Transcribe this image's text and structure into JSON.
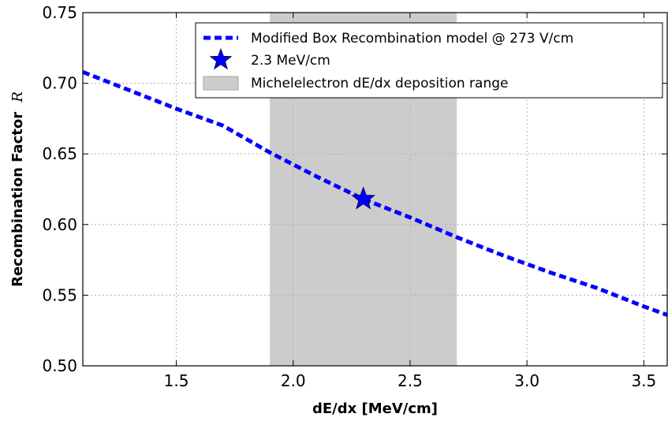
{
  "chart_data": {
    "type": "line",
    "xlabel": "dE/dx [MeV/cm]",
    "ylabel": "Recombination Factor",
    "ylabel_symbol": "R",
    "xlim": [
      1.1,
      3.6
    ],
    "ylim": [
      0.5,
      0.75
    ],
    "x_ticks": [
      1.5,
      2.0,
      2.5,
      3.0,
      3.5
    ],
    "x_tick_labels": [
      "1.5",
      "2.0",
      "2.5",
      "3.0",
      "3.5"
    ],
    "y_ticks": [
      0.5,
      0.55,
      0.6,
      0.65,
      0.7,
      0.75
    ],
    "y_tick_labels": [
      "0.50",
      "0.55",
      "0.60",
      "0.65",
      "0.70",
      "0.75"
    ],
    "grid": true,
    "legend_position": "top-right",
    "series": [
      {
        "name": "Modified Box Recombination model @ 273 V/cm",
        "style": "dashed",
        "color": "#0000ff",
        "x": [
          1.1,
          1.3,
          1.5,
          1.7,
          1.9,
          2.1,
          2.3,
          2.5,
          2.7,
          2.9,
          3.1,
          3.3,
          3.5,
          3.6
        ],
        "y": [
          0.708,
          0.695,
          0.682,
          0.67,
          0.651,
          0.634,
          0.618,
          0.605,
          0.591,
          0.578,
          0.566,
          0.555,
          0.542,
          0.536
        ]
      }
    ],
    "markers": [
      {
        "name": "2.3 MeV/cm",
        "x": 2.3,
        "y": 0.618,
        "shape": "star",
        "color": "#0000ff"
      }
    ],
    "bands": [
      {
        "name": "Michelelectron dE/dx deposition range",
        "x_start": 1.9,
        "x_end": 2.7,
        "color": "#cccccc"
      }
    ]
  }
}
